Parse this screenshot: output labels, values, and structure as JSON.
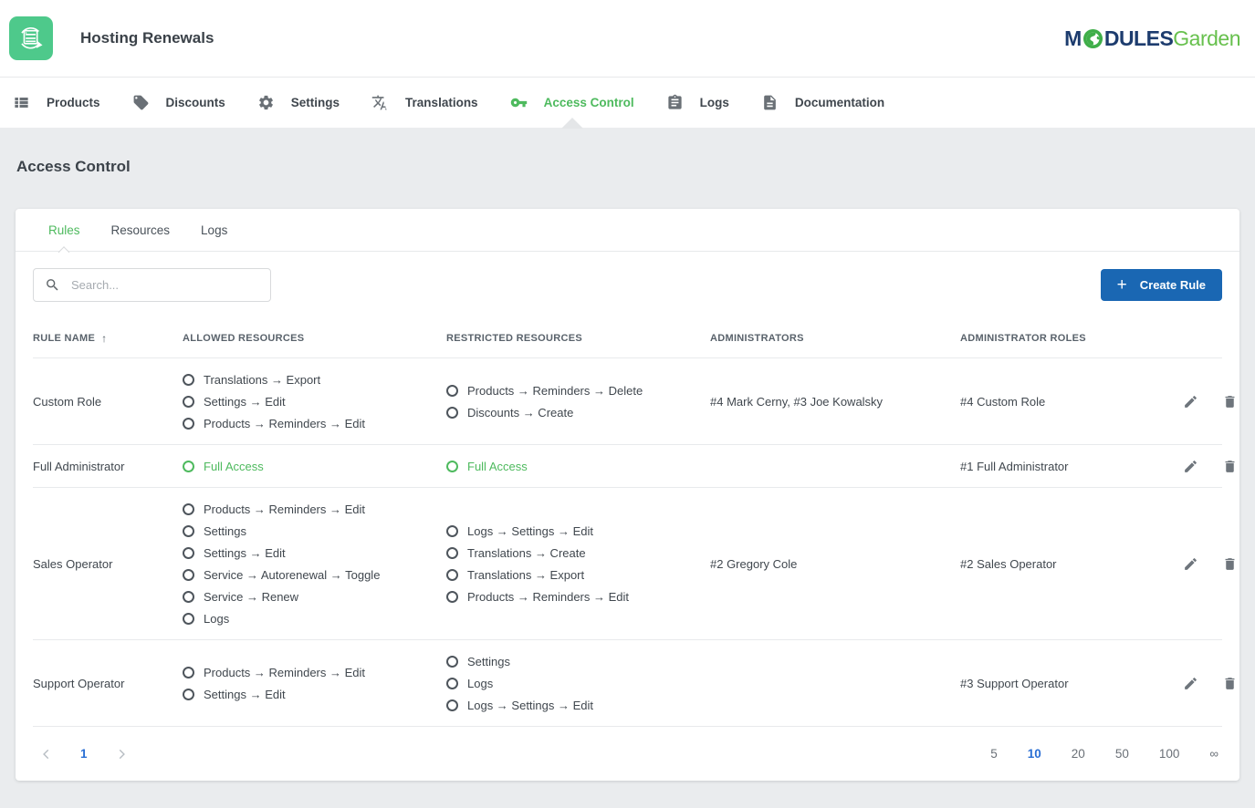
{
  "header": {
    "app_title": "Hosting Renewals",
    "logo": {
      "part1": "M",
      "globe_icon": "globe-icon",
      "part2": "DULES",
      "part3": "Garden"
    }
  },
  "nav": {
    "items": [
      {
        "label": "Products",
        "icon": "list-icon",
        "active": false
      },
      {
        "label": "Discounts",
        "icon": "tag-icon",
        "active": false
      },
      {
        "label": "Settings",
        "icon": "gear-icon",
        "active": false
      },
      {
        "label": "Translations",
        "icon": "translate-icon",
        "active": false
      },
      {
        "label": "Access Control",
        "icon": "key-icon",
        "active": true
      },
      {
        "label": "Logs",
        "icon": "clipboard-icon",
        "active": false
      },
      {
        "label": "Documentation",
        "icon": "document-icon",
        "active": false
      }
    ]
  },
  "page": {
    "title": "Access Control"
  },
  "tabs": [
    {
      "label": "Rules",
      "active": true
    },
    {
      "label": "Resources",
      "active": false
    },
    {
      "label": "Logs",
      "active": false
    }
  ],
  "toolbar": {
    "search_placeholder": "Search...",
    "create_button": "Create Rule"
  },
  "table": {
    "columns": [
      "RULE NAME",
      "ALLOWED RESOURCES",
      "RESTRICTED RESOURCES",
      "ADMINISTRATORS",
      "ADMINISTRATOR ROLES"
    ],
    "sort": {
      "column": "RULE NAME",
      "direction": "ascending",
      "indicator": "↑"
    },
    "full_access_label": "Full Access",
    "rows": [
      {
        "name": "Custom Role",
        "allowed": [
          "Translations → Export",
          "Settings → Edit",
          "Products → Reminders → Edit"
        ],
        "restricted": [
          "Products → Reminders → Delete",
          "Discounts → Create"
        ],
        "administrators": "#4 Mark Cerny, #3 Joe Kowalsky",
        "roles": "#4 Custom Role"
      },
      {
        "name": "Full Administrator",
        "allowed": [
          "Full Access"
        ],
        "restricted": [
          "Full Access"
        ],
        "administrators": "",
        "roles": "#1 Full Administrator"
      },
      {
        "name": "Sales Operator",
        "allowed": [
          "Products → Reminders → Edit",
          "Settings",
          "Settings → Edit",
          "Service → Autorenewal → Toggle",
          "Service → Renew",
          "Logs"
        ],
        "restricted": [
          "Logs → Settings → Edit",
          "Translations → Create",
          "Translations → Export",
          "Products → Reminders → Edit"
        ],
        "administrators": "#2 Gregory Cole",
        "roles": "#2 Sales Operator"
      },
      {
        "name": "Support Operator",
        "allowed": [
          "Products → Reminders → Edit",
          "Settings → Edit"
        ],
        "restricted": [
          "Settings",
          "Logs",
          "Logs → Settings → Edit"
        ],
        "administrators": "",
        "roles": "#3 Support Operator"
      }
    ]
  },
  "pagination": {
    "current_page": "1",
    "page_sizes": [
      "5",
      "10",
      "20",
      "50",
      "100",
      "∞"
    ],
    "current_size": "10"
  },
  "colors": {
    "green_accent": "#4eba5e",
    "app_icon_green": "#4ec98b",
    "brand_navy": "#1d3c6e",
    "brand_green": "#67c04d",
    "button_blue": "#1a67b3",
    "pagination_blue": "#2a6fd4",
    "page_background": "#eaecee"
  }
}
